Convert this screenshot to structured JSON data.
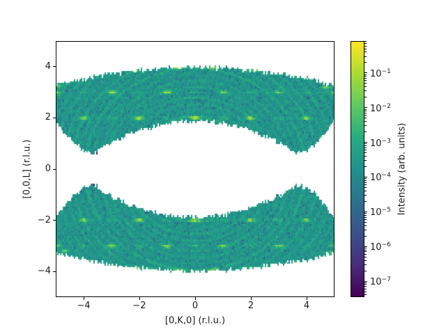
{
  "figure": {
    "background": "#ffffff"
  },
  "chart_data": {
    "type": "heatmap",
    "title": "",
    "xlabel": "[0,K,0] (r.l.u.)",
    "ylabel": "[0,0,L] (r.l.u.)",
    "xlim": [
      -5,
      5
    ],
    "ylim": [
      -5,
      5
    ],
    "grid": false,
    "xticks": [
      {
        "value": -4,
        "label": "−4"
      },
      {
        "value": -2,
        "label": "−2"
      },
      {
        "value": 0,
        "label": "0"
      },
      {
        "value": 2,
        "label": "2"
      },
      {
        "value": 4,
        "label": "4"
      }
    ],
    "yticks": [
      {
        "value": -4,
        "label": "−4"
      },
      {
        "value": -2,
        "label": "−2"
      },
      {
        "value": 0,
        "label": "0"
      },
      {
        "value": 2,
        "label": "2"
      },
      {
        "value": 4,
        "label": "4"
      }
    ],
    "colorbar": {
      "label": "Intensity (arb. units)",
      "scale": "log",
      "log_range": [
        -7.46,
        -0.08
      ],
      "major_tick_exponents": [
        -1,
        -2,
        -3,
        -4,
        -5,
        -6,
        -7
      ],
      "colormap": "viridis",
      "stops": [
        "#440154",
        "#472d7b",
        "#3b528b",
        "#2c728e",
        "#21918c",
        "#27ad81",
        "#5ec962",
        "#aadc32",
        "#fde725"
      ]
    },
    "coverage": "two crescent-shaped detector-coverage bands, mirror symmetric about L=0; white elsewhere",
    "band_shape": {
      "outer_R": 18.2,
      "outer_c": 14.2,
      "inner_R": 5.9,
      "inner_c": 4.06,
      "inner_k_break": 3.55,
      "wing_L0": 0.6,
      "wing_a": 0.62,
      "dip_points": [
        [
          -3.55,
          0.6
        ],
        [
          3.55,
          0.6
        ],
        [
          -3.55,
          -0.6
        ],
        [
          3.55,
          -0.6
        ]
      ],
      "outer_apex_L": 4.0,
      "edge_L_range_at_K5": [
        1.9,
        3.3
      ]
    },
    "cell_k": 0.05,
    "cell_l": 0.068,
    "base_log10": -3.72,
    "rim_boost": 0.45,
    "rings_note": "powder rings: circles of constant |Q|=sqrt(K^2+L^2); [radius, boost_decades, width]",
    "rings": [
      [
        2.05,
        0.85,
        0.05
      ],
      [
        2.3,
        0.3,
        0.04
      ],
      [
        2.55,
        0.55,
        0.045
      ],
      [
        2.8,
        0.5,
        0.045
      ],
      [
        3.0,
        0.25,
        0.04
      ],
      [
        3.2,
        0.45,
        0.045
      ],
      [
        3.45,
        0.5,
        0.045
      ],
      [
        3.7,
        0.35,
        0.04
      ],
      [
        3.95,
        0.7,
        0.05
      ],
      [
        4.2,
        0.35,
        0.045
      ],
      [
        4.45,
        0.55,
        0.05
      ],
      [
        4.75,
        0.45,
        0.05
      ],
      [
        5.05,
        0.5,
        0.05
      ],
      [
        5.35,
        0.45,
        0.05
      ],
      [
        5.65,
        0.4,
        0.05
      ],
      [
        5.95,
        0.35,
        0.05
      ],
      [
        6.25,
        0.3,
        0.05
      ]
    ],
    "peak_sigma_k": 0.17,
    "peak_sigma_l": 0.062,
    "peaks_note": "Bragg peaks [K, L, boost_decades]; strong where K+L even, weak where odd, plus rim dashes",
    "peaks": [
      [
        0,
        2,
        2.9
      ],
      [
        -2,
        2,
        2.9
      ],
      [
        2,
        2,
        2.8
      ],
      [
        -4,
        2,
        2.4
      ],
      [
        4,
        2,
        2.2
      ],
      [
        -3,
        3,
        2.9
      ],
      [
        -1,
        3,
        2.7
      ],
      [
        1,
        3,
        2.3
      ],
      [
        3,
        3,
        2.1
      ],
      [
        -5,
        3,
        2.5
      ],
      [
        5,
        3,
        2.5
      ],
      [
        0,
        -2,
        2.9
      ],
      [
        -2,
        -2,
        2.8
      ],
      [
        2,
        -2,
        2.8
      ],
      [
        -4,
        -2,
        2.3
      ],
      [
        4,
        -2,
        2.3
      ],
      [
        -3,
        -3,
        2.9
      ],
      [
        -1,
        -3,
        2.5
      ],
      [
        1,
        -3,
        2.2
      ],
      [
        3,
        -3,
        2.7
      ],
      [
        -5,
        -3,
        2.3
      ],
      [
        5,
        -3,
        2.6
      ],
      [
        0.65,
        3.95,
        1.7
      ],
      [
        -0.65,
        3.95,
        1.6
      ],
      [
        2.1,
        3.87,
        1.6
      ],
      [
        -2.1,
        3.87,
        1.5
      ],
      [
        0.65,
        -3.95,
        1.6
      ],
      [
        -0.65,
        -3.95,
        1.7
      ],
      [
        2.1,
        -3.87,
        1.5
      ],
      [
        -2.1,
        -3.87,
        1.6
      ],
      [
        4.7,
        3.2,
        1.8
      ],
      [
        -4.9,
        3.25,
        1.7
      ],
      [
        4.8,
        -3.25,
        1.7
      ],
      [
        -4.7,
        -3.2,
        1.6
      ],
      [
        1,
        2,
        1.0
      ],
      [
        -1,
        2,
        1.0
      ],
      [
        3,
        2,
        0.9
      ],
      [
        -3,
        2,
        0.9
      ],
      [
        0,
        3,
        0.9
      ],
      [
        2,
        3,
        1.0
      ],
      [
        -2,
        3,
        1.0
      ],
      [
        4,
        3,
        0.8
      ],
      [
        -4,
        3,
        0.8
      ],
      [
        1,
        -2,
        1.0
      ],
      [
        -1,
        -2,
        0.9
      ],
      [
        3,
        -2,
        1.0
      ],
      [
        -3,
        -2,
        0.9
      ],
      [
        0,
        -3,
        0.9
      ],
      [
        2,
        -3,
        0.9
      ],
      [
        -2,
        -3,
        1.0
      ],
      [
        4,
        -3,
        0.8
      ],
      [
        -4,
        -3,
        0.8
      ]
    ],
    "dead_pixels": [
      [
        -3.55,
        0.62
      ],
      [
        3.45,
        0.66
      ],
      [
        -3.6,
        -0.62
      ],
      [
        3.75,
        -0.58
      ]
    ],
    "noise": {
      "seed": 7,
      "tri_halfwidth_dec": 0.62,
      "dark_fraction": 0.05,
      "dark_extra_dec": [
        0.7,
        1.6
      ],
      "edge_dropout": 0.3
    }
  }
}
